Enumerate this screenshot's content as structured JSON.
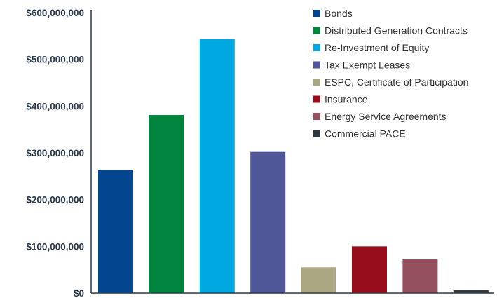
{
  "chart_data": {
    "type": "bar",
    "title": "",
    "xlabel": "",
    "ylabel": "",
    "ylim": [
      0,
      600000000
    ],
    "y_ticks": [
      {
        "value": 0,
        "label": "$0"
      },
      {
        "value": 100000000,
        "label": "$100,000,000"
      },
      {
        "value": 200000000,
        "label": "$200,000,000"
      },
      {
        "value": 300000000,
        "label": "$300,000,000"
      },
      {
        "value": 400000000,
        "label": "$400,000,000"
      },
      {
        "value": 500000000,
        "label": "$500,000,000"
      },
      {
        "value": 600000000,
        "label": "$600,000,000"
      }
    ],
    "grid": false,
    "legend_position": "top-right",
    "categories": [
      "Bonds",
      "Distributed Generation Contracts",
      "Re-Investment of Equity",
      "Tax Exempt Leases",
      "ESPC, Certificate of Participation",
      "Insurance",
      "Energy Service Agreements",
      "Commercial PACE"
    ],
    "values": [
      263000000,
      381000000,
      543000000,
      302000000,
      55000000,
      100000000,
      72000000,
      6000000
    ],
    "colors": [
      "#03468f",
      "#00843e",
      "#00a8e2",
      "#4f5799",
      "#aaa882",
      "#960d1b",
      "#95505e",
      "#2e3a40"
    ]
  }
}
